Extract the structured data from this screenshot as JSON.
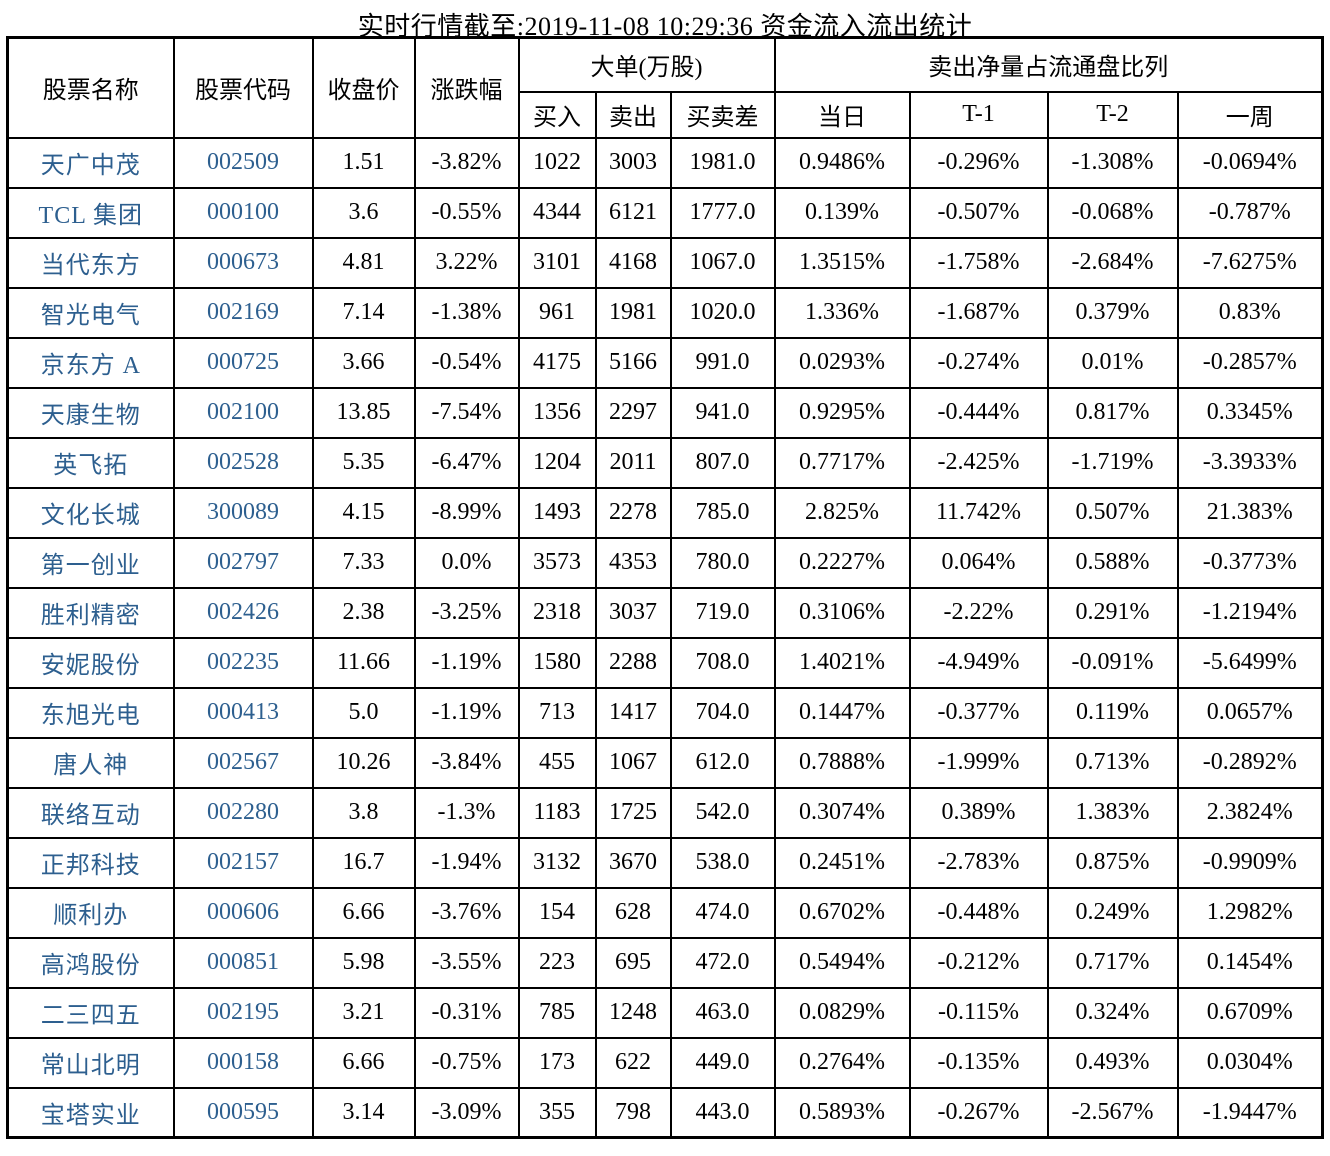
{
  "title": "实时行情截至:2019-11-08 10:29:36 资金流入流出统计",
  "colors": {
    "stock_link_blue": "#2d5f8f",
    "text": "#000000",
    "border": "#000000",
    "background": "#ffffff"
  },
  "table": {
    "headers": {
      "name": "股票名称",
      "code": "股票代码",
      "close": "收盘价",
      "change": "涨跌幅",
      "big_order_group": "大单(万股)",
      "net_sell_group": "卖出净量占流通盘比列",
      "buy": "买入",
      "sell": "卖出",
      "diff": "买卖差",
      "today": "当日",
      "t1": "T-1",
      "t2": "T-2",
      "week": "一周"
    },
    "rows": [
      {
        "name": "天广中茂",
        "code": "002509",
        "close": "1.51",
        "change": "-3.82%",
        "buy": "1022",
        "sell": "3003",
        "diff": "1981.0",
        "today": "0.9486%",
        "t1": "-0.296%",
        "t2": "-1.308%",
        "week": "-0.0694%"
      },
      {
        "name": "TCL 集团",
        "code": "000100",
        "close": "3.6",
        "change": "-0.55%",
        "buy": "4344",
        "sell": "6121",
        "diff": "1777.0",
        "today": "0.139%",
        "t1": "-0.507%",
        "t2": "-0.068%",
        "week": "-0.787%"
      },
      {
        "name": "当代东方",
        "code": "000673",
        "close": "4.81",
        "change": "3.22%",
        "buy": "3101",
        "sell": "4168",
        "diff": "1067.0",
        "today": "1.3515%",
        "t1": "-1.758%",
        "t2": "-2.684%",
        "week": "-7.6275%"
      },
      {
        "name": "智光电气",
        "code": "002169",
        "close": "7.14",
        "change": "-1.38%",
        "buy": "961",
        "sell": "1981",
        "diff": "1020.0",
        "today": "1.336%",
        "t1": "-1.687%",
        "t2": "0.379%",
        "week": "0.83%"
      },
      {
        "name": "京东方 A",
        "code": "000725",
        "close": "3.66",
        "change": "-0.54%",
        "buy": "4175",
        "sell": "5166",
        "diff": "991.0",
        "today": "0.0293%",
        "t1": "-0.274%",
        "t2": "0.01%",
        "week": "-0.2857%"
      },
      {
        "name": "天康生物",
        "code": "002100",
        "close": "13.85",
        "change": "-7.54%",
        "buy": "1356",
        "sell": "2297",
        "diff": "941.0",
        "today": "0.9295%",
        "t1": "-0.444%",
        "t2": "0.817%",
        "week": "0.3345%"
      },
      {
        "name": "英飞拓",
        "code": "002528",
        "close": "5.35",
        "change": "-6.47%",
        "buy": "1204",
        "sell": "2011",
        "diff": "807.0",
        "today": "0.7717%",
        "t1": "-2.425%",
        "t2": "-1.719%",
        "week": "-3.3933%"
      },
      {
        "name": "文化长城",
        "code": "300089",
        "close": "4.15",
        "change": "-8.99%",
        "buy": "1493",
        "sell": "2278",
        "diff": "785.0",
        "today": "2.825%",
        "t1": "11.742%",
        "t2": "0.507%",
        "week": "21.383%"
      },
      {
        "name": "第一创业",
        "code": "002797",
        "close": "7.33",
        "change": "0.0%",
        "buy": "3573",
        "sell": "4353",
        "diff": "780.0",
        "today": "0.2227%",
        "t1": "0.064%",
        "t2": "0.588%",
        "week": "-0.3773%"
      },
      {
        "name": "胜利精密",
        "code": "002426",
        "close": "2.38",
        "change": "-3.25%",
        "buy": "2318",
        "sell": "3037",
        "diff": "719.0",
        "today": "0.3106%",
        "t1": "-2.22%",
        "t2": "0.291%",
        "week": "-1.2194%"
      },
      {
        "name": "安妮股份",
        "code": "002235",
        "close": "11.66",
        "change": "-1.19%",
        "buy": "1580",
        "sell": "2288",
        "diff": "708.0",
        "today": "1.4021%",
        "t1": "-4.949%",
        "t2": "-0.091%",
        "week": "-5.6499%"
      },
      {
        "name": "东旭光电",
        "code": "000413",
        "close": "5.0",
        "change": "-1.19%",
        "buy": "713",
        "sell": "1417",
        "diff": "704.0",
        "today": "0.1447%",
        "t1": "-0.377%",
        "t2": "0.119%",
        "week": "0.0657%"
      },
      {
        "name": "唐人神",
        "code": "002567",
        "close": "10.26",
        "change": "-3.84%",
        "buy": "455",
        "sell": "1067",
        "diff": "612.0",
        "today": "0.7888%",
        "t1": "-1.999%",
        "t2": "0.713%",
        "week": "-0.2892%"
      },
      {
        "name": "联络互动",
        "code": "002280",
        "close": "3.8",
        "change": "-1.3%",
        "buy": "1183",
        "sell": "1725",
        "diff": "542.0",
        "today": "0.3074%",
        "t1": "0.389%",
        "t2": "1.383%",
        "week": "2.3824%"
      },
      {
        "name": "正邦科技",
        "code": "002157",
        "close": "16.7",
        "change": "-1.94%",
        "buy": "3132",
        "sell": "3670",
        "diff": "538.0",
        "today": "0.2451%",
        "t1": "-2.783%",
        "t2": "0.875%",
        "week": "-0.9909%"
      },
      {
        "name": "顺利办",
        "code": "000606",
        "close": "6.66",
        "change": "-3.76%",
        "buy": "154",
        "sell": "628",
        "diff": "474.0",
        "today": "0.6702%",
        "t1": "-0.448%",
        "t2": "0.249%",
        "week": "1.2982%"
      },
      {
        "name": "高鸿股份",
        "code": "000851",
        "close": "5.98",
        "change": "-3.55%",
        "buy": "223",
        "sell": "695",
        "diff": "472.0",
        "today": "0.5494%",
        "t1": "-0.212%",
        "t2": "0.717%",
        "week": "0.1454%"
      },
      {
        "name": "二三四五",
        "code": "002195",
        "close": "3.21",
        "change": "-0.31%",
        "buy": "785",
        "sell": "1248",
        "diff": "463.0",
        "today": "0.0829%",
        "t1": "-0.115%",
        "t2": "0.324%",
        "week": "0.6709%"
      },
      {
        "name": "常山北明",
        "code": "000158",
        "close": "6.66",
        "change": "-0.75%",
        "buy": "173",
        "sell": "622",
        "diff": "449.0",
        "today": "0.2764%",
        "t1": "-0.135%",
        "t2": "0.493%",
        "week": "0.0304%"
      },
      {
        "name": "宝塔实业",
        "code": "000595",
        "close": "3.14",
        "change": "-3.09%",
        "buy": "355",
        "sell": "798",
        "diff": "443.0",
        "today": "0.5893%",
        "t1": "-0.267%",
        "t2": "-2.567%",
        "week": "-1.9447%"
      }
    ]
  }
}
